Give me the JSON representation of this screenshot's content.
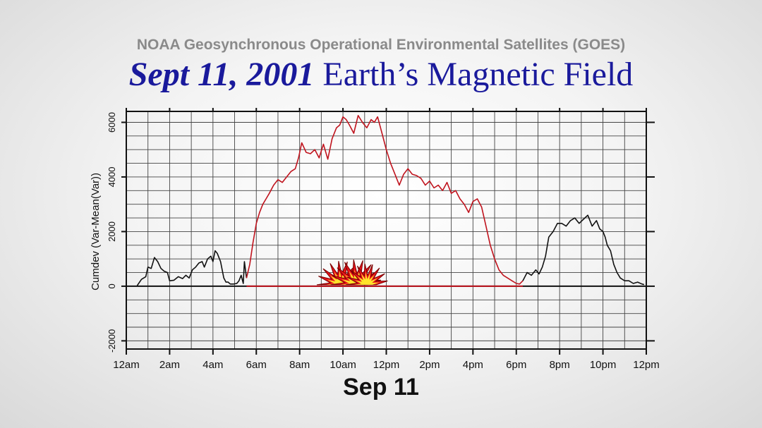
{
  "header": {
    "subtitle": "NOAA Geosynchronous Operational Environmental Satellites (GOES)",
    "title_emphasis": "Sept 11, 2001",
    "title_rest": "Earth’s Magnetic Field"
  },
  "chart_data": {
    "type": "line",
    "title": "",
    "xlabel": "Sep 11",
    "ylabel": "Cumdev (Var-Mean(Var))",
    "xlim_hours": [
      0,
      24
    ],
    "ylim": [
      -2300,
      6400
    ],
    "grid": true,
    "x_tick_labels": [
      "12am",
      "2am",
      "4am",
      "6am",
      "8am",
      "10am",
      "12pm",
      "2pm",
      "4pm",
      "6pm",
      "8pm",
      "10pm",
      "12pm"
    ],
    "y_ticks": [
      -2000,
      0,
      2000,
      4000,
      6000
    ],
    "series": [
      {
        "color": "#111111",
        "x": [
          0.5,
          0.7,
          0.9,
          1.0,
          1.15,
          1.3,
          1.45,
          1.6,
          1.75,
          1.9,
          2.0,
          2.2,
          2.4,
          2.6,
          2.75,
          2.9,
          3.05,
          3.2,
          3.35,
          3.5,
          3.6,
          3.75,
          3.9,
          4.0,
          4.1,
          4.2,
          4.35,
          4.5,
          4.6,
          4.7,
          4.8,
          4.95,
          5.1,
          5.2,
          5.3,
          5.4,
          5.45,
          5.5,
          5.55
        ],
        "y": [
          20,
          250,
          350,
          700,
          650,
          1050,
          900,
          650,
          550,
          500,
          200,
          220,
          350,
          280,
          400,
          300,
          600,
          700,
          850,
          900,
          700,
          1000,
          1100,
          900,
          1300,
          1200,
          900,
          300,
          150,
          150,
          80,
          80,
          100,
          200,
          400,
          100,
          900,
          600,
          300
        ]
      },
      {
        "color": "#c0141e",
        "x": [
          5.55,
          5.7,
          5.85,
          6.0,
          6.15,
          6.3,
          6.45,
          6.6,
          6.8,
          7.0,
          7.2,
          7.4,
          7.6,
          7.8,
          7.95,
          8.1,
          8.3,
          8.5,
          8.7,
          8.9,
          9.1,
          9.3,
          9.5,
          9.7,
          9.85,
          10.0,
          10.15,
          10.3,
          10.5,
          10.7,
          10.9,
          11.1,
          11.3,
          11.45,
          11.6,
          11.8,
          12.0,
          12.2,
          12.4,
          12.6,
          12.8,
          13.0,
          13.2,
          13.4,
          13.6,
          13.8,
          14.0,
          14.2,
          14.4,
          14.6,
          14.8,
          15.0,
          15.2,
          15.4,
          15.6,
          15.8,
          16.0,
          16.2,
          16.4,
          16.6,
          16.8,
          17.0,
          17.2,
          17.4,
          17.6,
          17.8,
          18.0,
          18.15,
          18.3
        ],
        "y": [
          300,
          800,
          1600,
          2300,
          2700,
          3000,
          3200,
          3400,
          3700,
          3900,
          3800,
          4000,
          4200,
          4300,
          4700,
          5250,
          4900,
          4850,
          5000,
          4700,
          5200,
          4650,
          5400,
          5800,
          5900,
          6200,
          6100,
          5900,
          5600,
          6250,
          6000,
          5800,
          6100,
          6000,
          6200,
          5600,
          5000,
          4500,
          4100,
          3700,
          4100,
          4300,
          4100,
          4050,
          3950,
          3700,
          3850,
          3600,
          3700,
          3500,
          3800,
          3400,
          3500,
          3200,
          3000,
          2700,
          3100,
          3200,
          2900,
          2200,
          1500,
          1000,
          600,
          400,
          300,
          200,
          100,
          80,
          200
        ]
      },
      {
        "color": "#111111",
        "x": [
          18.3,
          18.5,
          18.7,
          18.9,
          19.05,
          19.2,
          19.35,
          19.5,
          19.7,
          19.9,
          20.1,
          20.3,
          20.5,
          20.7,
          20.9,
          21.1,
          21.3,
          21.5,
          21.7,
          21.85,
          22.0,
          22.1,
          22.2,
          22.35,
          22.5,
          22.65,
          22.8,
          23.0,
          23.2,
          23.4,
          23.6,
          23.8,
          23.9
        ],
        "y": [
          200,
          500,
          400,
          600,
          450,
          700,
          1100,
          1800,
          2000,
          2300,
          2300,
          2200,
          2400,
          2500,
          2300,
          2450,
          2600,
          2200,
          2400,
          2100,
          2000,
          1800,
          1500,
          1300,
          800,
          500,
          300,
          200,
          200,
          100,
          150,
          80,
          60
        ]
      }
    ],
    "baseline_segment": {
      "color": "#c0141e",
      "x": [
        5.55,
        18.3
      ],
      "y": 0
    }
  }
}
